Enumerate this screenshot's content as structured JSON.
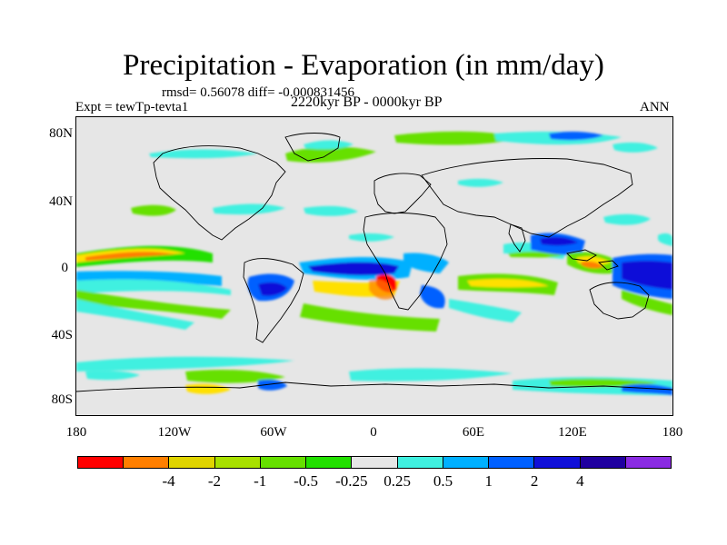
{
  "title": "Precipitation - Evaporation (in mm/day)",
  "stats": "rmsd= 0.56078 diff= -0.000831456",
  "experiment": "Expt = tewTp-tevta1",
  "period": "2220kyr BP - 0000kyr BP",
  "season": "ANN",
  "map": {
    "lat_labels": [
      "80N",
      "40N",
      "0",
      "40S",
      "80S"
    ],
    "lon_labels": [
      "180",
      "120W",
      "60W",
      "0",
      "60E",
      "120E",
      "180"
    ]
  },
  "colorbar": {
    "colors": [
      "#ff0000",
      "#ff7f00",
      "#e0d400",
      "#a8e000",
      "#66e000",
      "#22e000",
      "#e6e6e6",
      "#40f0e0",
      "#00b0ff",
      "#0060ff",
      "#1010d8",
      "#2000a0",
      "#8a2be2"
    ],
    "labels": [
      "-4",
      "-2",
      "-1",
      "-0.5",
      "-0.25",
      "0.25",
      "0.5",
      "1",
      "2",
      "4"
    ]
  }
}
